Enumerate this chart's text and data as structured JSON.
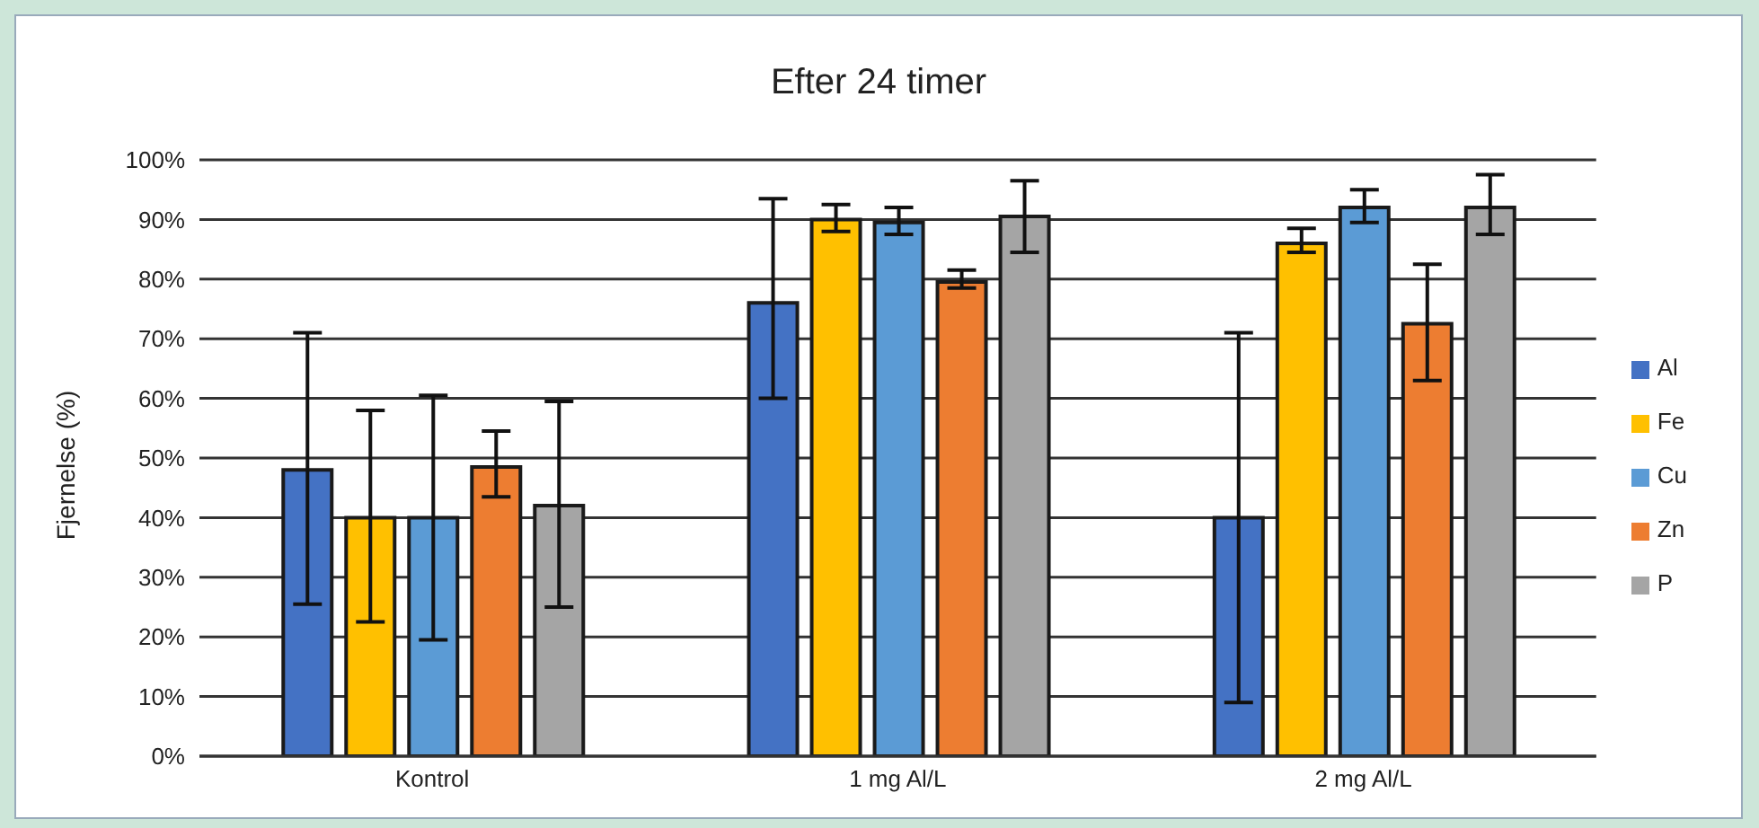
{
  "chart_data": {
    "type": "bar",
    "title": "Efter 24 timer",
    "ylabel": "Fjernelse (%)",
    "categories": [
      "Kontrol",
      "1 mg Al/L",
      "2 mg Al/L"
    ],
    "series": [
      {
        "name": "Al",
        "color": "#4472c4",
        "values": [
          48,
          76,
          40
        ],
        "errors": [
          [
            25.5,
            71
          ],
          [
            60,
            93.5
          ],
          [
            9,
            71
          ]
        ]
      },
      {
        "name": "Fe",
        "color": "#ffc000",
        "values": [
          40,
          90,
          86
        ],
        "errors": [
          [
            22.5,
            58
          ],
          [
            88,
            92.5
          ],
          [
            84.5,
            88.5
          ]
        ]
      },
      {
        "name": "Cu",
        "color": "#5b9bd5",
        "values": [
          40,
          89.5,
          92
        ],
        "errors": [
          [
            19.5,
            60.5
          ],
          [
            87.5,
            92
          ],
          [
            89.5,
            95
          ]
        ]
      },
      {
        "name": "Zn",
        "color": "#ed7d31",
        "values": [
          48.5,
          79.5,
          72.5
        ],
        "errors": [
          [
            43.5,
            54.5
          ],
          [
            78.5,
            81.5
          ],
          [
            63,
            82.5
          ]
        ]
      },
      {
        "name": "P",
        "color": "#a5a5a5",
        "values": [
          42,
          90.5,
          92
        ],
        "errors": [
          [
            25,
            59.5
          ],
          [
            84.5,
            96.5
          ],
          [
            87.5,
            97.5
          ]
        ]
      }
    ],
    "ylim": [
      0,
      100
    ],
    "yticks": [
      {
        "value": 0,
        "label": "0%"
      },
      {
        "value": 10,
        "label": "10%"
      },
      {
        "value": 20,
        "label": "20%"
      },
      {
        "value": 30,
        "label": "30%"
      },
      {
        "value": 40,
        "label": "40%"
      },
      {
        "value": 50,
        "label": "50%"
      },
      {
        "value": 60,
        "label": "60%"
      },
      {
        "value": 70,
        "label": "70%"
      },
      {
        "value": 80,
        "label": "80%"
      },
      {
        "value": 90,
        "label": "90%"
      },
      {
        "value": 100,
        "label": "100%"
      }
    ],
    "grid": "y",
    "legend": "right"
  }
}
